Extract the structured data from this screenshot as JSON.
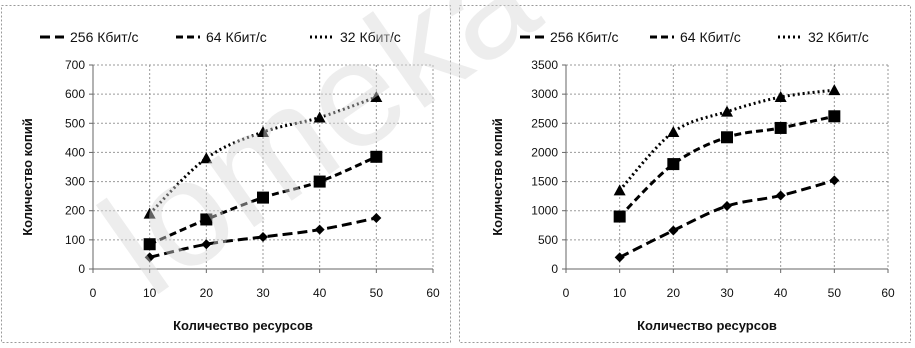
{
  "watermark": "lomeka",
  "chart_data": [
    {
      "type": "scatter",
      "legend_position": "top",
      "grid": true,
      "xlabel": "Количество ресурсов",
      "ylabel": "Количество копий",
      "xlim": [
        0,
        60
      ],
      "ylim": [
        0,
        700
      ],
      "xticks": [
        0,
        10,
        20,
        30,
        40,
        50,
        60
      ],
      "yticks": [
        0,
        100,
        200,
        300,
        400,
        500,
        600,
        700
      ],
      "x": [
        10,
        20,
        30,
        40,
        50
      ],
      "series": [
        {
          "name": "256 Кбит/с",
          "marker": "diamond",
          "line": "long-dash",
          "values": [
            40,
            85,
            110,
            135,
            175
          ]
        },
        {
          "name": "64 Кбит/с",
          "marker": "square",
          "line": "dash",
          "values": [
            85,
            170,
            245,
            300,
            385
          ]
        },
        {
          "name": "32 Кбит/с",
          "marker": "triangle",
          "line": "dotted",
          "values": [
            190,
            380,
            470,
            520,
            590
          ]
        }
      ]
    },
    {
      "type": "scatter",
      "legend_position": "top",
      "grid": true,
      "xlabel": "Количество ресурсов",
      "ylabel": "Количество копий",
      "xlim": [
        0,
        60
      ],
      "ylim": [
        0,
        3500
      ],
      "xticks": [
        0,
        10,
        20,
        30,
        40,
        50,
        60
      ],
      "yticks": [
        0,
        500,
        1000,
        1500,
        2000,
        2500,
        3000,
        3500
      ],
      "x": [
        10,
        20,
        30,
        40,
        50
      ],
      "series": [
        {
          "name": "256 Кбит/с",
          "marker": "diamond",
          "line": "long-dash",
          "values": [
            200,
            660,
            1080,
            1260,
            1520
          ]
        },
        {
          "name": "64 Кбит/с",
          "marker": "square",
          "line": "dash",
          "values": [
            900,
            1800,
            2260,
            2420,
            2620
          ]
        },
        {
          "name": "32 Кбит/с",
          "marker": "triangle",
          "line": "dotted",
          "values": [
            1350,
            2350,
            2700,
            2950,
            3070
          ]
        }
      ]
    }
  ]
}
